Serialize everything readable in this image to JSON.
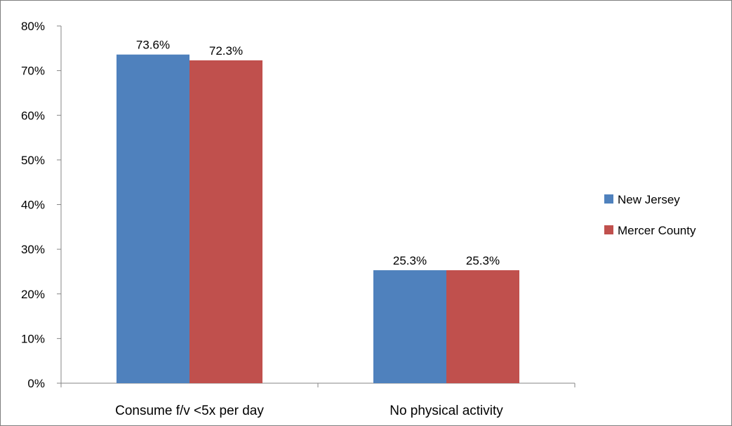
{
  "chart_data": {
    "type": "bar",
    "title": "",
    "xlabel": "",
    "ylabel": "",
    "categories": [
      "Consume f/v <5x per day",
      "No physical activity"
    ],
    "series": [
      {
        "name": "New Jersey",
        "values": [
          73.6,
          25.3
        ],
        "labels": [
          "73.6%",
          "25.3%"
        ],
        "color": "#4f81bd"
      },
      {
        "name": "Mercer County",
        "values": [
          72.3,
          25.3
        ],
        "labels": [
          "72.3%",
          "25.3%"
        ],
        "color": "#c0504d"
      }
    ],
    "ylim": [
      0,
      80
    ],
    "yticks": [
      0,
      10,
      20,
      30,
      40,
      50,
      60,
      70,
      80
    ],
    "ytick_labels": [
      "0%",
      "10%",
      "20%",
      "30%",
      "40%",
      "50%",
      "60%",
      "70%",
      "80%"
    ],
    "grid": false,
    "legend_position": "right"
  }
}
